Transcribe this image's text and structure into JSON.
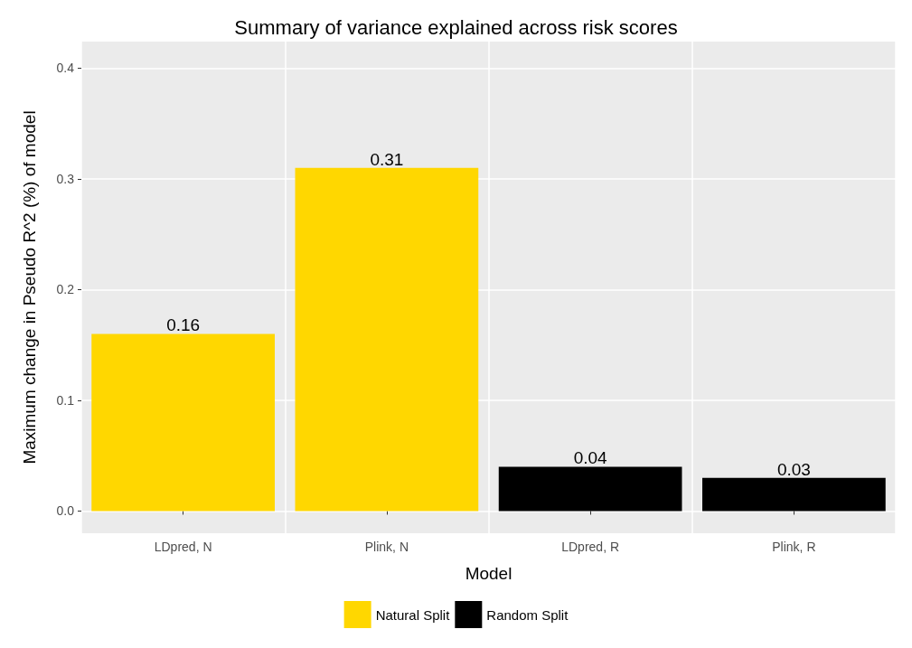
{
  "chart_data": {
    "type": "bar",
    "title": "Summary of variance explained across risk scores",
    "xlabel": "Model",
    "ylabel": "Maximum change in Pseudo R^2 (%) of model",
    "categories": [
      "LDpred, N",
      "Plink, N",
      "LDpred, R",
      "Plink, R"
    ],
    "series": [
      {
        "name": "Natural Split",
        "color": "#ffd700",
        "values": [
          0.16,
          0.31,
          null,
          null
        ]
      },
      {
        "name": "Random Split",
        "color": "#000000",
        "values": [
          null,
          null,
          0.04,
          0.03
        ]
      }
    ],
    "ylim": [
      -0.02,
      0.424
    ],
    "yticks": [
      {
        "value": 0,
        "label": "0.0"
      },
      0.1,
      0.2,
      0.3,
      0.4
    ],
    "grid": true,
    "legend": "bottom",
    "data_labels": true
  }
}
